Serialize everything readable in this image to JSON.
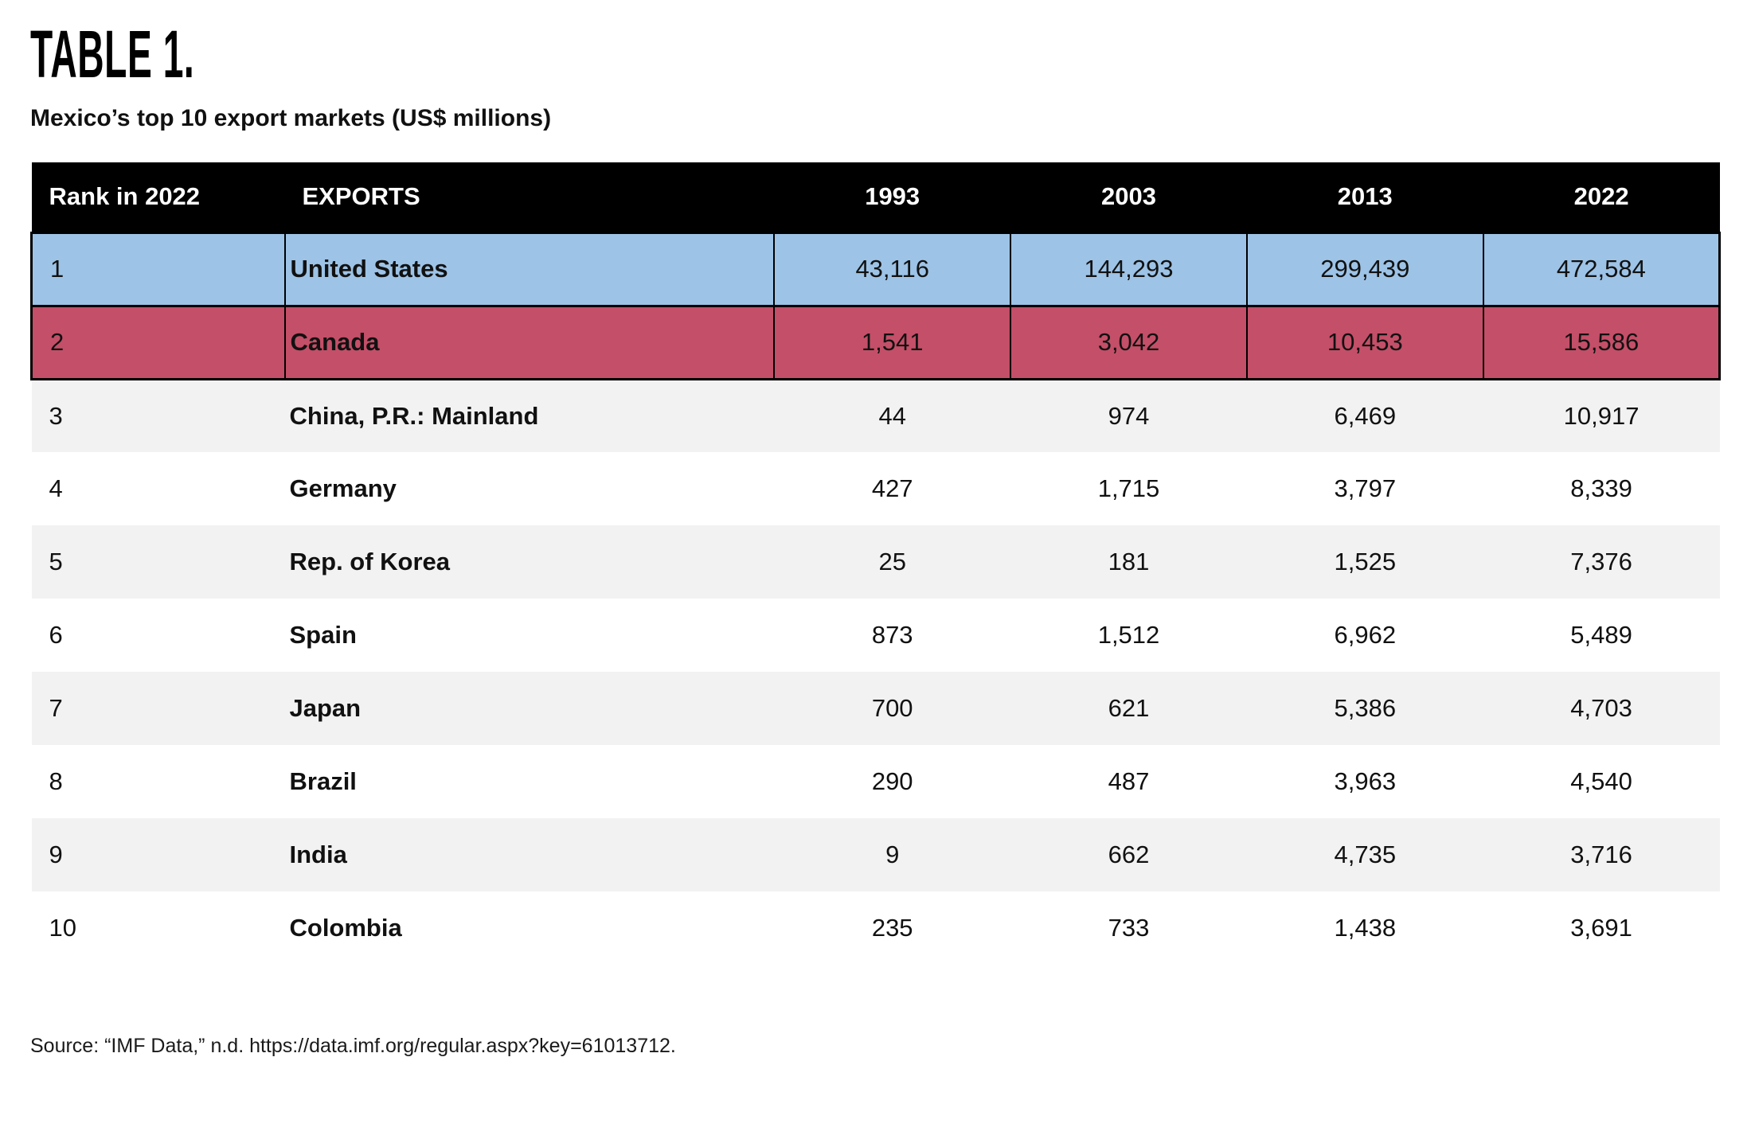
{
  "page": {
    "table_label": "TABLE 1.",
    "subtitle": "Mexico’s top 10 export markets (US$ millions)",
    "source": "Source: “IMF Data,” n.d. https://data.imf.org/regular.aspx?key=61013712."
  },
  "chart_data": {
    "type": "table",
    "title": "Mexico’s top 10 export markets (US$ millions)",
    "columns": [
      "Rank in 2022",
      "EXPORTS",
      "1993",
      "2003",
      "2013",
      "2022"
    ],
    "rows": [
      [
        "1",
        "United States",
        "43,116",
        "144,293",
        "299,439",
        "472,584"
      ],
      [
        "2",
        "Canada",
        "1,541",
        "3,042",
        "10,453",
        "15,586"
      ],
      [
        "3",
        "China, P.R.: Mainland",
        "44",
        "974",
        "6,469",
        "10,917"
      ],
      [
        "4",
        "Germany",
        "427",
        "1,715",
        "3,797",
        "8,339"
      ],
      [
        "5",
        "Rep. of Korea",
        "25",
        "181",
        "1,525",
        "7,376"
      ],
      [
        "6",
        "Spain",
        "873",
        "1,512",
        "6,962",
        "5,489"
      ],
      [
        "7",
        "Japan",
        "700",
        "621",
        "5,386",
        "4,703"
      ],
      [
        "8",
        "Brazil",
        "290",
        "487",
        "3,963",
        "4,540"
      ],
      [
        "9",
        "India",
        "9",
        "662",
        "4,735",
        "3,716"
      ],
      [
        "10",
        "Colombia",
        "235",
        "733",
        "1,438",
        "3,691"
      ]
    ],
    "layout": {
      "legend": "none",
      "grid": "off",
      "striped_rows": true,
      "highlighted_rows": [
        "United States",
        "Canada"
      ]
    },
    "colors": {
      "header_bg": "#000000",
      "header_text": "#FFFFFF",
      "highlight_blue": "#9DC3E6",
      "highlight_red": "#C44F68",
      "stripe_bg": "#F2F2F2",
      "text": "#111111"
    }
  }
}
